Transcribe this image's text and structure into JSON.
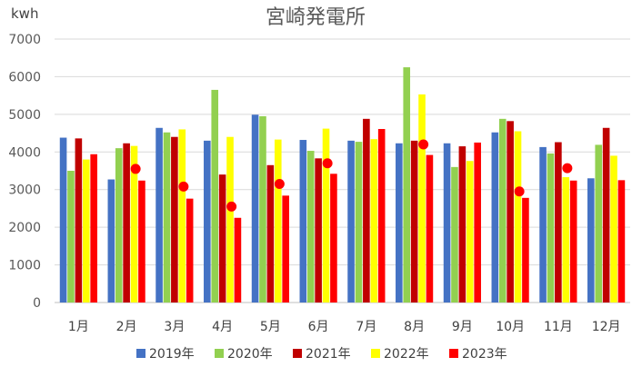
{
  "chart_data": {
    "type": "bar",
    "title": "宮崎発電所",
    "ylabel": "kwh",
    "xlabel": "",
    "ylim": [
      0,
      7000
    ],
    "yticks": [
      0,
      1000,
      2000,
      3000,
      4000,
      5000,
      6000,
      7000
    ],
    "grid": true,
    "legend_position": "bottom",
    "categories": [
      "1月",
      "2月",
      "3月",
      "4月",
      "5月",
      "6月",
      "7月",
      "8月",
      "9月",
      "10月",
      "11月",
      "12月"
    ],
    "series": [
      {
        "name": "2019年",
        "color": "#4472C4",
        "mark": "bar",
        "values": [
          4380,
          3270,
          4640,
          4300,
          4990,
          4320,
          4300,
          4230,
          4230,
          4520,
          4130,
          3300
        ]
      },
      {
        "name": "2020年",
        "color": "#92D050",
        "mark": "bar",
        "values": [
          3500,
          4100,
          4520,
          5650,
          4950,
          4030,
          4270,
          6250,
          3600,
          4880,
          3960,
          4190
        ]
      },
      {
        "name": "2021年",
        "color": "#C00000",
        "mark": "bar",
        "values": [
          4360,
          4230,
          4400,
          3400,
          3650,
          3830,
          4880,
          4300,
          4150,
          4820,
          4260,
          4640
        ]
      },
      {
        "name": "2022年",
        "color": "#FFFF00",
        "mark": "bar",
        "values": [
          3800,
          4160,
          4600,
          4400,
          4330,
          4620,
          4340,
          5530,
          3760,
          4550,
          3330,
          3900
        ]
      },
      {
        "name": "2023年",
        "color": "#FF0000",
        "mark": "bar",
        "values": [
          3940,
          3240,
          2760,
          2250,
          2840,
          3420,
          4610,
          3920,
          4250,
          2780,
          3240,
          3250
        ]
      },
      {
        "name": "2023年",
        "color": "#FF0000",
        "mark": "dot",
        "values": [
          null,
          3550,
          3080,
          2550,
          3150,
          3700,
          null,
          4200,
          null,
          2950,
          3570,
          null
        ]
      }
    ]
  }
}
